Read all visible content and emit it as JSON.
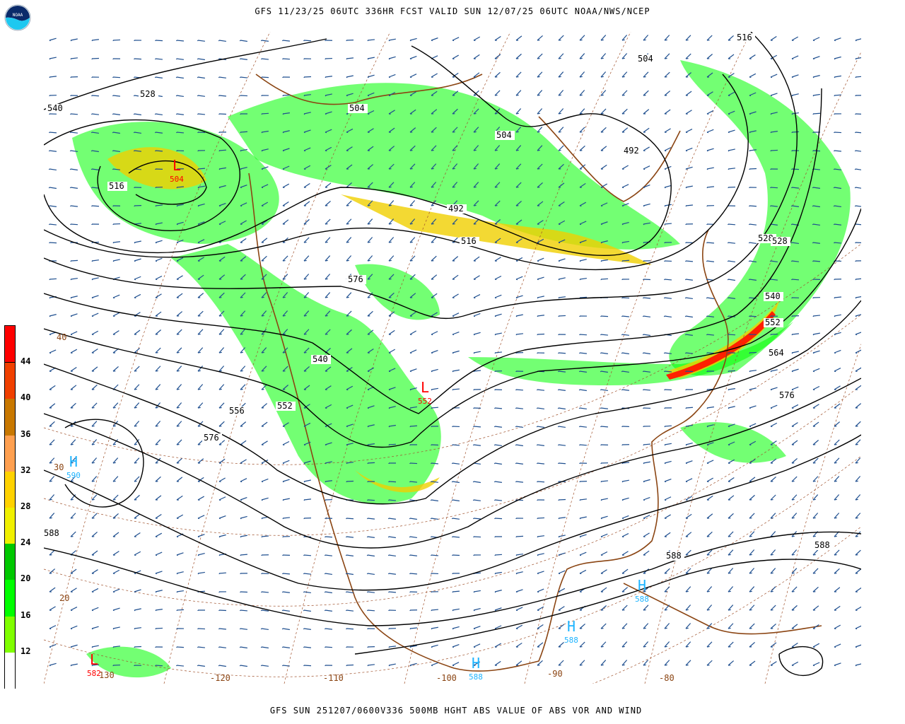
{
  "header": {
    "title": "GFS 11/23/25 06UTC 336HR FCST VALID SUN 12/07/25 06UTC NOAA/NWS/NCEP"
  },
  "footer": {
    "caption": "GFS SUN 251207/0600V336 500MB HGHT ABS VALUE OF ABS VOR AND WIND"
  },
  "logo": {
    "text": "NOAA"
  },
  "legend": {
    "ticks": [
      "12",
      "16",
      "20",
      "24",
      "28",
      "32",
      "36",
      "40",
      "44"
    ],
    "colors": [
      "#ffffff",
      "#80ff00",
      "#00ff00",
      "#00c800",
      "#f0f000",
      "#ffd200",
      "#ffa050",
      "#c87800",
      "#f04000",
      "#ff0000"
    ]
  },
  "map": {
    "contour_color": "#000000",
    "coast_color": "#8b4513",
    "barb_color": "#1f4f8f",
    "contour_labels": [
      "540",
      "528",
      "516",
      "504",
      "492",
      "504",
      "492",
      "516",
      "504",
      "516",
      "528",
      "540",
      "552",
      "564",
      "576",
      "588",
      "552",
      "540",
      "556",
      "576",
      "588",
      "588",
      "576",
      "528"
    ],
    "centers": [
      {
        "type": "L",
        "value": "504",
        "color": "#ff0000"
      },
      {
        "type": "L",
        "value": "552",
        "color": "#ff0000"
      },
      {
        "type": "L",
        "value": "582",
        "color": "#ff0000"
      },
      {
        "type": "H",
        "value": "590",
        "color": "#1eb4ff"
      },
      {
        "type": "H",
        "value": "588",
        "color": "#1eb4ff"
      },
      {
        "type": "H",
        "value": "588",
        "color": "#1eb4ff"
      },
      {
        "type": "H",
        "value": "588",
        "color": "#1eb4ff"
      }
    ],
    "lon_labels": [
      "130",
      "-120",
      "-110",
      "-100",
      "-90",
      "-80"
    ],
    "lat_labels": [
      "40",
      "30",
      "20"
    ]
  }
}
